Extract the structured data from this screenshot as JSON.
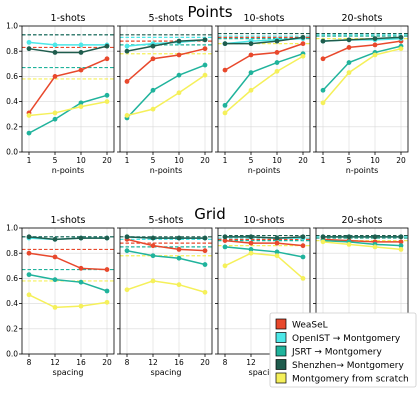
{
  "row_titles": [
    "Points",
    "Grid"
  ],
  "legend": {
    "entries": [
      {
        "label": "WeaSeL",
        "color": "#e8482c"
      },
      {
        "label": "OpenIST → Montgomery",
        "color": "#4de8e8"
      },
      {
        "label": "JSRT → Montgomery",
        "color": "#20b39c"
      },
      {
        "label": "Shenzhen→ Montgomery",
        "color": "#1f5c4d"
      },
      {
        "label": "Montgomery from scratch",
        "color": "#f5f05a"
      }
    ],
    "placement": "bottom-right"
  },
  "chart_data": [
    {
      "type": "line",
      "title": "1-shots",
      "row": "Points",
      "xlabel": "n-points",
      "x": [
        "1",
        "5",
        "10",
        "20"
      ],
      "ylim": [
        0,
        1
      ],
      "yticks": [
        "0.0",
        "0.2",
        "0.4",
        "0.6",
        "0.8",
        "1.0"
      ],
      "grid": true,
      "series": [
        {
          "name": "WeaSeL",
          "values": [
            0.31,
            0.6,
            0.65,
            0.74
          ]
        },
        {
          "name": "OpenIST → Montgomery",
          "values": [
            0.87,
            0.85,
            0.85,
            0.85
          ]
        },
        {
          "name": "JSRT → Montgomery",
          "values": [
            0.15,
            0.26,
            0.39,
            0.45
          ]
        },
        {
          "name": "Shenzhen→ Montgomery",
          "values": [
            0.82,
            0.79,
            0.79,
            0.84
          ]
        },
        {
          "name": "Montgomery from scratch",
          "values": [
            0.29,
            0.31,
            0.36,
            0.4
          ]
        }
      ],
      "hlines": [
        {
          "series": "WeaSeL",
          "value": 0.83
        },
        {
          "series": "OpenIST → Montgomery",
          "value": 0.93
        },
        {
          "series": "JSRT → Montgomery",
          "value": 0.67
        },
        {
          "series": "Shenzhen→ Montgomery",
          "value": 0.93
        },
        {
          "series": "Montgomery from scratch",
          "value": 0.58
        }
      ]
    },
    {
      "type": "line",
      "title": "5-shots",
      "row": "Points",
      "xlabel": "n-points",
      "x": [
        "1",
        "5",
        "10",
        "20"
      ],
      "ylim": [
        0,
        1
      ],
      "grid": true,
      "series": [
        {
          "name": "WeaSeL",
          "values": [
            0.56,
            0.74,
            0.77,
            0.82
          ]
        },
        {
          "name": "OpenIST → Montgomery",
          "values": [
            0.84,
            0.86,
            0.87,
            0.89
          ]
        },
        {
          "name": "JSRT → Montgomery",
          "values": [
            0.27,
            0.49,
            0.61,
            0.69
          ]
        },
        {
          "name": "Shenzhen→ Montgomery",
          "values": [
            0.8,
            0.84,
            0.88,
            0.89
          ]
        },
        {
          "name": "Montgomery from scratch",
          "values": [
            0.29,
            0.34,
            0.47,
            0.61
          ]
        }
      ],
      "hlines": [
        {
          "series": "WeaSeL",
          "value": 0.88
        },
        {
          "series": "OpenIST → Montgomery",
          "value": 0.91
        },
        {
          "series": "JSRT → Montgomery",
          "value": 0.85
        },
        {
          "series": "Shenzhen→ Montgomery",
          "value": 0.93
        },
        {
          "series": "Montgomery from scratch",
          "value": 0.78
        }
      ]
    },
    {
      "type": "line",
      "title": "10-shots",
      "row": "Points",
      "xlabel": "n-points",
      "x": [
        "1",
        "5",
        "10",
        "20"
      ],
      "ylim": [
        0,
        1
      ],
      "grid": true,
      "series": [
        {
          "name": "WeaSeL",
          "values": [
            0.65,
            0.77,
            0.79,
            0.86
          ]
        },
        {
          "name": "OpenIST → Montgomery",
          "values": [
            0.86,
            0.88,
            0.89,
            0.9
          ]
        },
        {
          "name": "JSRT → Montgomery",
          "values": [
            0.37,
            0.63,
            0.71,
            0.78
          ]
        },
        {
          "name": "Shenzhen→ Montgomery",
          "values": [
            0.86,
            0.86,
            0.88,
            0.91
          ]
        },
        {
          "name": "Montgomery from scratch",
          "values": [
            0.31,
            0.49,
            0.64,
            0.76
          ]
        }
      ],
      "hlines": [
        {
          "series": "WeaSeL",
          "value": 0.91
        },
        {
          "series": "OpenIST → Montgomery",
          "value": 0.92
        },
        {
          "series": "JSRT → Montgomery",
          "value": 0.9
        },
        {
          "series": "Shenzhen→ Montgomery",
          "value": 0.94
        },
        {
          "series": "Montgomery from scratch",
          "value": 0.86
        }
      ]
    },
    {
      "type": "line",
      "title": "20-shots",
      "row": "Points",
      "xlabel": "n-points",
      "x": [
        "1",
        "5",
        "10",
        "20"
      ],
      "ylim": [
        0,
        1
      ],
      "grid": true,
      "series": [
        {
          "name": "WeaSeL",
          "values": [
            0.74,
            0.83,
            0.85,
            0.88
          ]
        },
        {
          "name": "OpenIST → Montgomery",
          "values": [
            0.88,
            0.89,
            0.89,
            0.9
          ]
        },
        {
          "name": "JSRT → Montgomery",
          "values": [
            0.49,
            0.71,
            0.79,
            0.84
          ]
        },
        {
          "name": "Shenzhen→ Montgomery",
          "values": [
            0.88,
            0.89,
            0.9,
            0.91
          ]
        },
        {
          "name": "Montgomery from scratch",
          "values": [
            0.39,
            0.63,
            0.77,
            0.82
          ]
        }
      ],
      "hlines": [
        {
          "series": "WeaSeL",
          "value": 0.92
        },
        {
          "series": "OpenIST → Montgomery",
          "value": 0.93
        },
        {
          "series": "JSRT → Montgomery",
          "value": 0.92
        },
        {
          "series": "Shenzhen→ Montgomery",
          "value": 0.94
        },
        {
          "series": "Montgomery from scratch",
          "value": 0.9
        }
      ]
    },
    {
      "type": "line",
      "title": "1-shots",
      "row": "Grid",
      "xlabel": "spacing",
      "x": [
        "8",
        "12",
        "16",
        "20"
      ],
      "ylim": [
        0,
        1
      ],
      "yticks": [
        "0.0",
        "0.2",
        "0.4",
        "0.6",
        "0.8",
        "1.0"
      ],
      "grid": true,
      "series": [
        {
          "name": "WeaSeL",
          "values": [
            0.8,
            0.77,
            0.68,
            0.67
          ]
        },
        {
          "name": "OpenIST → Montgomery",
          "values": [
            0.92,
            0.91,
            0.92,
            0.92
          ]
        },
        {
          "name": "JSRT → Montgomery",
          "values": [
            0.63,
            0.59,
            0.57,
            0.5
          ]
        },
        {
          "name": "Shenzhen→ Montgomery",
          "values": [
            0.93,
            0.91,
            0.92,
            0.92
          ]
        },
        {
          "name": "Montgomery from scratch",
          "values": [
            0.47,
            0.37,
            0.38,
            0.41
          ]
        }
      ],
      "hlines": [
        {
          "series": "WeaSeL",
          "value": 0.83
        },
        {
          "series": "OpenIST → Montgomery",
          "value": 0.93
        },
        {
          "series": "JSRT → Montgomery",
          "value": 0.67
        },
        {
          "series": "Shenzhen→ Montgomery",
          "value": 0.93
        },
        {
          "series": "Montgomery from scratch",
          "value": 0.58
        }
      ]
    },
    {
      "type": "line",
      "title": "5-shots",
      "row": "Grid",
      "xlabel": "spacing",
      "x": [
        "8",
        "12",
        "16",
        "20"
      ],
      "ylim": [
        0,
        1
      ],
      "grid": true,
      "series": [
        {
          "name": "WeaSeL",
          "values": [
            0.91,
            0.86,
            0.83,
            0.82
          ]
        },
        {
          "name": "OpenIST → Montgomery",
          "values": [
            0.93,
            0.92,
            0.92,
            0.92
          ]
        },
        {
          "name": "JSRT → Montgomery",
          "values": [
            0.82,
            0.78,
            0.76,
            0.71
          ]
        },
        {
          "name": "Shenzhen→ Montgomery",
          "values": [
            0.93,
            0.92,
            0.92,
            0.92
          ]
        },
        {
          "name": "Montgomery from scratch",
          "values": [
            0.51,
            0.58,
            0.55,
            0.49
          ]
        }
      ],
      "hlines": [
        {
          "series": "WeaSeL",
          "value": 0.88
        },
        {
          "series": "OpenIST → Montgomery",
          "value": 0.91
        },
        {
          "series": "JSRT → Montgomery",
          "value": 0.85
        },
        {
          "series": "Shenzhen→ Montgomery",
          "value": 0.93
        },
        {
          "series": "Montgomery from scratch",
          "value": 0.78
        }
      ]
    },
    {
      "type": "line",
      "title": "10-shots",
      "row": "Grid",
      "xlabel": "spacing",
      "x": [
        "8",
        "12",
        "16",
        "20"
      ],
      "ylim": [
        0,
        1
      ],
      "grid": true,
      "series": [
        {
          "name": "WeaSeL",
          "values": [
            0.9,
            0.88,
            0.88,
            0.86
          ]
        },
        {
          "name": "OpenIST → Montgomery",
          "values": [
            0.93,
            0.93,
            0.92,
            0.92
          ]
        },
        {
          "name": "JSRT → Montgomery",
          "values": [
            0.85,
            0.83,
            0.81,
            0.77
          ]
        },
        {
          "name": "Shenzhen→ Montgomery",
          "values": [
            0.93,
            0.93,
            0.92,
            0.93
          ]
        },
        {
          "name": "Montgomery from scratch",
          "values": [
            0.7,
            0.8,
            0.78,
            0.6
          ]
        }
      ],
      "hlines": [
        {
          "series": "WeaSeL",
          "value": 0.91
        },
        {
          "series": "OpenIST → Montgomery",
          "value": 0.92
        },
        {
          "series": "JSRT → Montgomery",
          "value": 0.9
        },
        {
          "series": "Shenzhen→ Montgomery",
          "value": 0.94
        },
        {
          "series": "Montgomery from scratch",
          "value": 0.86
        }
      ]
    },
    {
      "type": "line",
      "title": "20-shots",
      "row": "Grid",
      "xlabel": "spacing",
      "x": [
        "8",
        "12",
        "16",
        "20"
      ],
      "ylim": [
        0,
        1
      ],
      "grid": true,
      "series": [
        {
          "name": "WeaSeL",
          "values": [
            0.91,
            0.9,
            0.89,
            0.89
          ]
        },
        {
          "name": "OpenIST → Montgomery",
          "values": [
            0.93,
            0.93,
            0.93,
            0.93
          ]
        },
        {
          "name": "JSRT → Montgomery",
          "values": [
            0.9,
            0.89,
            0.87,
            0.86
          ]
        },
        {
          "name": "Shenzhen→ Montgomery",
          "values": [
            0.93,
            0.93,
            0.93,
            0.93
          ]
        },
        {
          "name": "Montgomery from scratch",
          "values": [
            0.89,
            0.87,
            0.85,
            0.83
          ]
        }
      ],
      "hlines": [
        {
          "series": "WeaSeL",
          "value": 0.92
        },
        {
          "series": "OpenIST → Montgomery",
          "value": 0.93
        },
        {
          "series": "JSRT → Montgomery",
          "value": 0.92
        },
        {
          "series": "Shenzhen→ Montgomery",
          "value": 0.94
        },
        {
          "series": "Montgomery from scratch",
          "value": 0.9
        }
      ]
    }
  ]
}
